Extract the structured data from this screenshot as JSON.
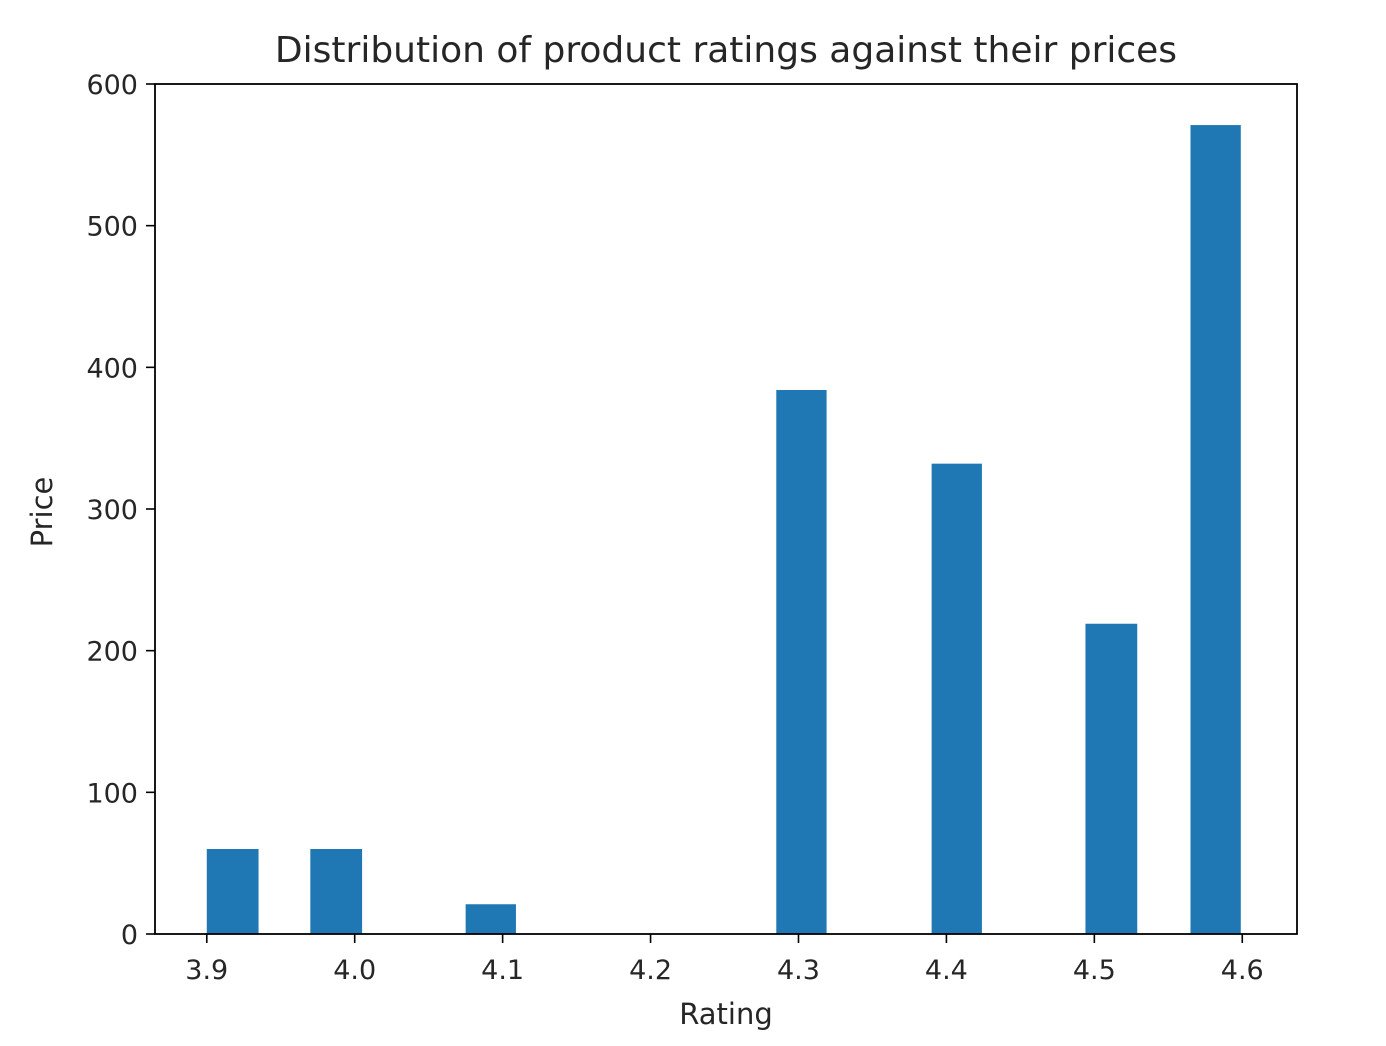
{
  "chart_data": {
    "type": "bar",
    "title": "Distribution of product ratings against their prices",
    "xlabel": "Rating",
    "ylabel": "Price",
    "xlim": [
      3.865,
      4.637
    ],
    "ylim": [
      0,
      600
    ],
    "xticks": [
      "3.9",
      "4.0",
      "4.1",
      "4.2",
      "4.3",
      "4.4",
      "4.5",
      "4.6"
    ],
    "yticks": [
      "0",
      "100",
      "200",
      "300",
      "400",
      "500",
      "600"
    ],
    "bars": [
      {
        "x_start": 3.9,
        "x_end": 3.935,
        "value": 60
      },
      {
        "x_start": 3.97,
        "x_end": 4.005,
        "value": 60
      },
      {
        "x_start": 4.075,
        "x_end": 4.109,
        "value": 21
      },
      {
        "x_start": 4.285,
        "x_end": 4.319,
        "value": 384
      },
      {
        "x_start": 4.39,
        "x_end": 4.424,
        "value": 332
      },
      {
        "x_start": 4.494,
        "x_end": 4.529,
        "value": 219
      },
      {
        "x_start": 4.565,
        "x_end": 4.599,
        "value": 571
      }
    ],
    "bar_color": "#1f77b4",
    "grid": false,
    "legend": "none"
  }
}
